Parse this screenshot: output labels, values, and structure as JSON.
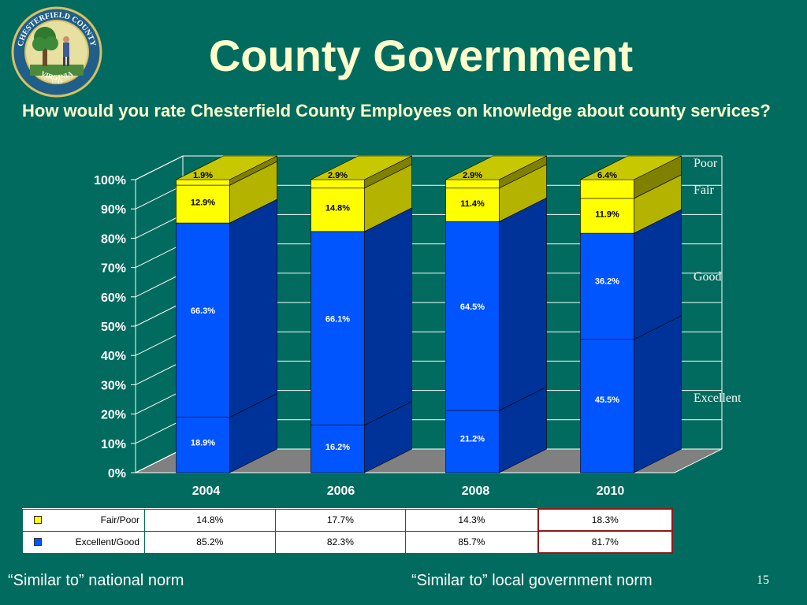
{
  "page": {
    "title": "County Government",
    "subtitle": "How would you rate Chesterfield County Employees on knowledge about county services?",
    "seal": {
      "top_text": "CHESTERFIELD COUNTY",
      "year": "1749",
      "bottom_text": "VIRGINIA"
    },
    "footer_left": "“Similar to” national norm",
    "footer_right": "“Similar to” local government norm",
    "page_number": "15"
  },
  "chart_data": {
    "type": "bar",
    "stacked": true,
    "three_d": true,
    "categories": [
      "2004",
      "2006",
      "2008",
      "2010"
    ],
    "series": [
      {
        "name": "Excellent",
        "values": [
          18.9,
          16.2,
          21.2,
          45.5
        ],
        "labels": [
          "18.9%",
          "16.2%",
          "21.2%",
          "45.5%"
        ],
        "color": "#0055ff",
        "side": "#003399",
        "top": "#3377ff"
      },
      {
        "name": "Good",
        "values": [
          66.3,
          66.1,
          64.5,
          36.2
        ],
        "labels": [
          "66.3%",
          "66.1%",
          "64.5%",
          "36.2%"
        ],
        "color": "#0055ff",
        "side": "#003399",
        "top": "#3377ff"
      },
      {
        "name": "Fair",
        "values": [
          12.9,
          14.8,
          11.4,
          11.9
        ],
        "labels": [
          "12.9%",
          "14.8%",
          "11.4%",
          "11.9%"
        ],
        "color": "#ffff00",
        "side": "#b3b300",
        "top": "#ffff66"
      },
      {
        "name": "Poor",
        "values": [
          1.9,
          2.9,
          2.9,
          6.4
        ],
        "labels": [
          "1.9%",
          "2.9%",
          "2.9%",
          "6.4%"
        ],
        "color": "#ffff00",
        "side": "#808000",
        "top": "#c8c800"
      }
    ],
    "ylim": [
      0,
      100
    ],
    "yticks": [
      "0%",
      "10%",
      "20%",
      "30%",
      "40%",
      "50%",
      "60%",
      "70%",
      "80%",
      "90%",
      "100%"
    ],
    "grid": true,
    "legend": "right",
    "colors": {
      "text_light": "#ffffff",
      "grid": "#ffffff",
      "floor": "#808080"
    }
  },
  "table": {
    "rows": [
      {
        "label": "Fair/Poor",
        "swatch": "#ffff00",
        "values": [
          "14.8%",
          "17.7%",
          "14.3%",
          "18.3%"
        ]
      },
      {
        "label": "Excellent/Good",
        "swatch": "#0055ff",
        "values": [
          "85.2%",
          "82.3%",
          "85.7%",
          "81.7%"
        ]
      }
    ]
  }
}
